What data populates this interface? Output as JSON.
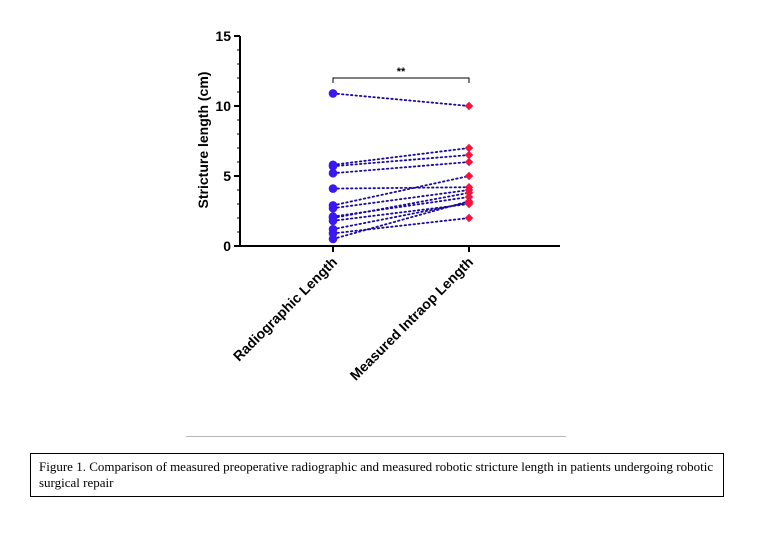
{
  "chart_data": {
    "type": "scatter",
    "paired": true,
    "ylabel": "Stricture length (cm)",
    "xlabel": "",
    "ylim": [
      0,
      15
    ],
    "yticks": [
      0,
      5,
      10,
      15
    ],
    "categories": [
      "Radiographic Length",
      "Measured Intraop Length"
    ],
    "significance": "**",
    "colors": {
      "radiographic": "#3b17f2",
      "intraop": "#f5123e",
      "connector": "#1a0a9c"
    },
    "pairs": [
      {
        "radiographic": 10.9,
        "intraop": 10.0
      },
      {
        "radiographic": 5.8,
        "intraop": 7.0
      },
      {
        "radiographic": 5.7,
        "intraop": 6.5
      },
      {
        "radiographic": 5.2,
        "intraop": 6.0
      },
      {
        "radiographic": 4.1,
        "intraop": 4.2
      },
      {
        "radiographic": 2.9,
        "intraop": 5.0
      },
      {
        "radiographic": 2.7,
        "intraop": 4.0
      },
      {
        "radiographic": 2.1,
        "intraop": 3.5
      },
      {
        "radiographic": 2.0,
        "intraop": 3.8
      },
      {
        "radiographic": 1.8,
        "intraop": 3.0
      },
      {
        "radiographic": 1.2,
        "intraop": 3.1
      },
      {
        "radiographic": 0.9,
        "intraop": 2.0
      },
      {
        "radiographic": 0.5,
        "intraop": 3.2
      }
    ]
  },
  "caption": "Figure 1. Comparison of measured preoperative radiographic and measured robotic stricture length in patients undergoing robotic surgical repair"
}
